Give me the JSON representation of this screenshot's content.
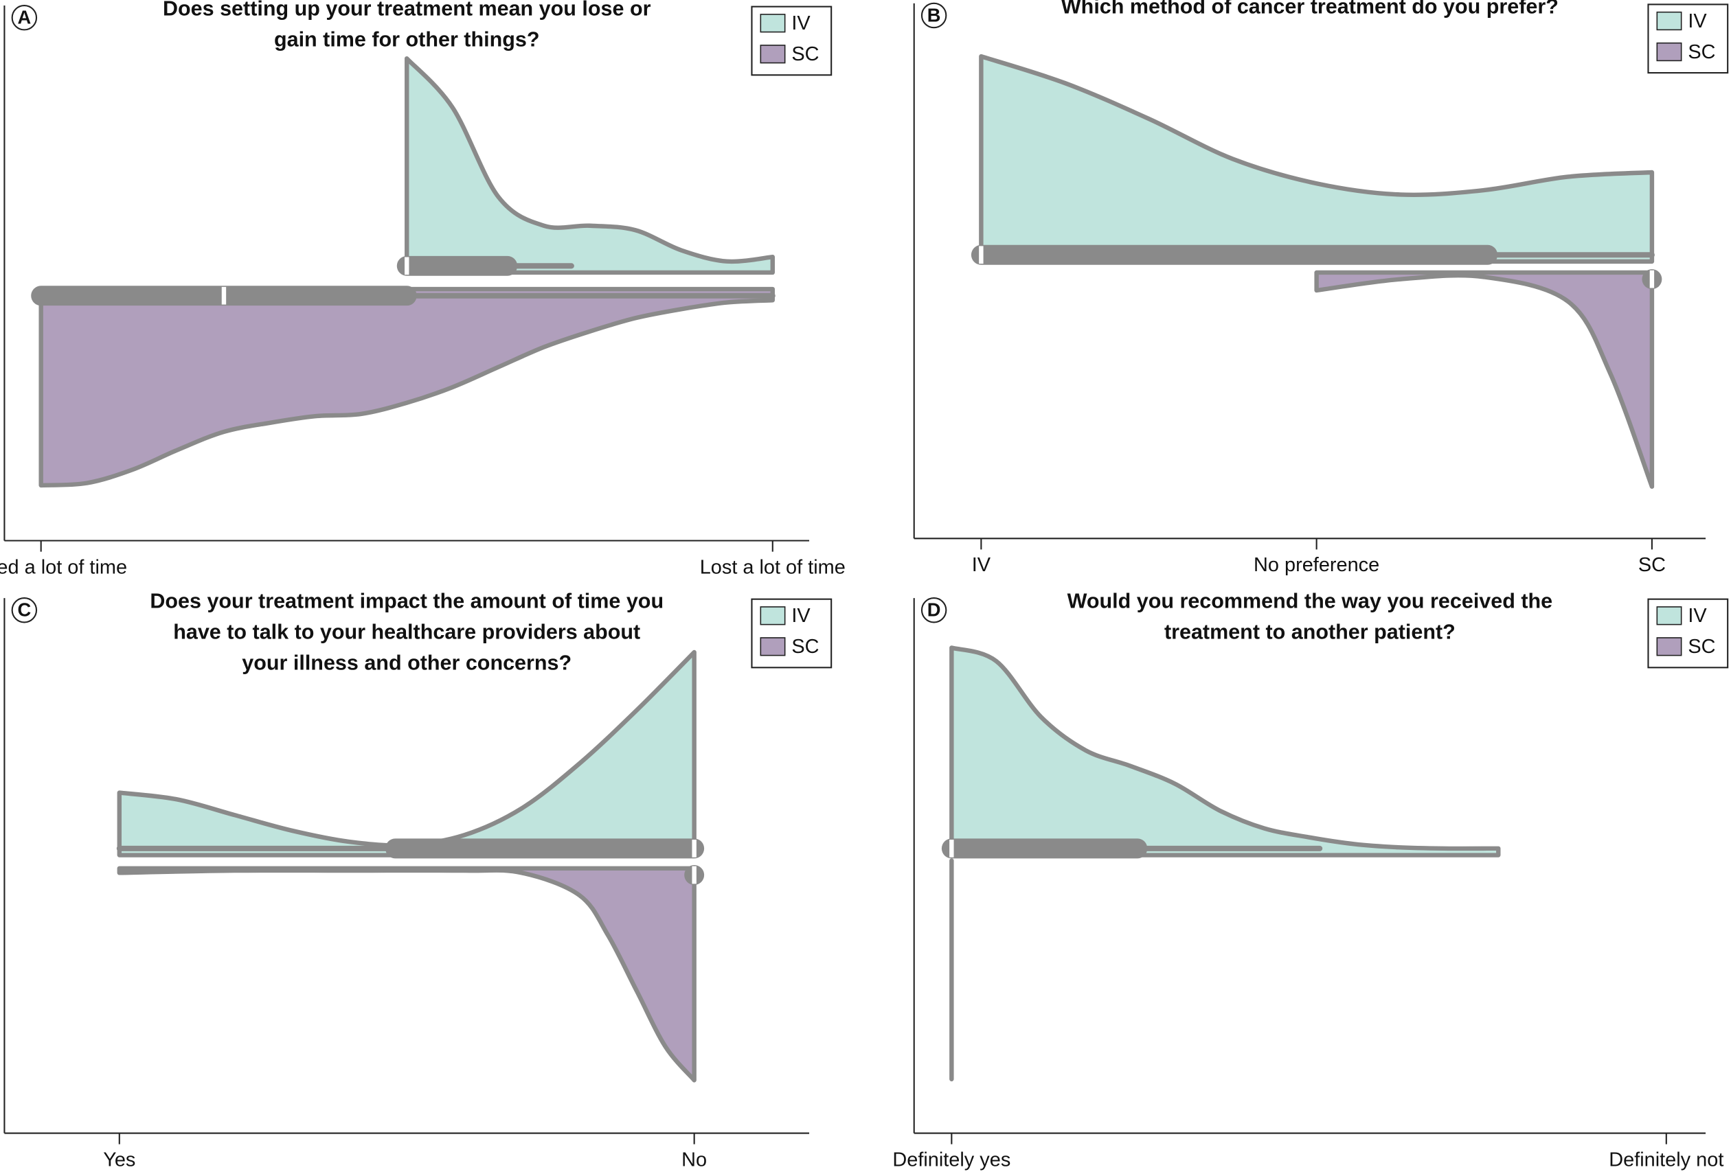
{
  "chart_data": [
    {
      "type": "violin",
      "panel": "A",
      "title": [
        "Does setting up your treatment mean you lose or",
        "gain time for other things?"
      ],
      "xlim": [
        0.8,
        5.2
      ],
      "xticks": [
        {
          "value": 1,
          "label": "Gained a lot of time"
        },
        {
          "value": 5,
          "label": "Lost a lot of time"
        }
      ],
      "ylim": [
        -1.2,
        1.2
      ],
      "legend": "upper right",
      "series": [
        {
          "name": "IV",
          "color": "#c0e4dd",
          "x": [
            3.0,
            3.25,
            3.5,
            3.75,
            4.0,
            4.25,
            4.5,
            4.75,
            5.0
          ],
          "values": [
            0.96,
            0.74,
            0.34,
            0.21,
            0.21,
            0.19,
            0.1,
            0.05,
            0.07
          ],
          "box": {
            "whisker_low": 3.0,
            "q1": 3.0,
            "median": 3.0,
            "q3": 3.55,
            "whisker_high": 3.9
          }
        },
        {
          "name": "SC",
          "color": "#b09fbc",
          "x": [
            1.0,
            1.25,
            1.5,
            1.75,
            2.0,
            2.25,
            2.5,
            2.75,
            3.0,
            3.25,
            3.5,
            3.75,
            4.0,
            4.25,
            4.5,
            4.75,
            5.0
          ],
          "values": [
            0.88,
            0.87,
            0.81,
            0.72,
            0.64,
            0.6,
            0.57,
            0.56,
            0.51,
            0.44,
            0.35,
            0.26,
            0.19,
            0.13,
            0.09,
            0.06,
            0.05
          ],
          "box": {
            "whisker_low": 1.0,
            "q1": 1.0,
            "median": 2.0,
            "q3": 3.0,
            "whisker_high": 5.0
          }
        }
      ]
    },
    {
      "type": "violin",
      "panel": "B",
      "title": [
        "Which method of cancer treatment do you prefer?"
      ],
      "xlim": [
        0.8,
        3.16
      ],
      "xticks": [
        {
          "value": 1,
          "label": "IV"
        },
        {
          "value": 2,
          "label": "No preference"
        },
        {
          "value": 3,
          "label": "SC"
        }
      ],
      "ylim": [
        -1.2,
        1.2
      ],
      "legend": "upper right",
      "series": [
        {
          "name": "IV",
          "color": "#c0e4dd",
          "x": [
            1.0,
            1.25,
            1.5,
            1.75,
            2.0,
            2.25,
            2.5,
            2.75,
            3.0
          ],
          "values": [
            0.92,
            0.8,
            0.64,
            0.46,
            0.35,
            0.3,
            0.32,
            0.38,
            0.4
          ],
          "box": {
            "whisker_low": 1.0,
            "q1": 1.0,
            "median": 1.0,
            "q3": 2.51,
            "whisker_high": 3.0
          }
        },
        {
          "name": "SC",
          "color": "#b09fbc",
          "x": [
            2.0,
            2.25,
            2.5,
            2.75,
            2.875,
            3.0
          ],
          "values": [
            0.08,
            0.03,
            0.02,
            0.13,
            0.45,
            0.96
          ],
          "box": {
            "whisker_low": 3.0,
            "q1": 3.0,
            "median": 3.0,
            "q3": 3.0,
            "whisker_high": 3.0
          }
        }
      ]
    },
    {
      "type": "violin",
      "panel": "C",
      "title": [
        "Does your treatment impact the amount of time you",
        "have to talk to your healthcare providers about",
        "your illness and other concerns?"
      ],
      "xlim": [
        0.8,
        2.2
      ],
      "xticks": [
        {
          "value": 1,
          "label": "Yes"
        },
        {
          "value": 2,
          "label": "No"
        }
      ],
      "ylim": [
        -1.2,
        1.2
      ],
      "legend": "upper right",
      "series": [
        {
          "name": "IV",
          "color": "#c0e4dd",
          "x": [
            1.0,
            1.1,
            1.2,
            1.3,
            1.4,
            1.5,
            1.6,
            1.7,
            1.8,
            1.9,
            2.0
          ],
          "values": [
            0.28,
            0.25,
            0.18,
            0.11,
            0.06,
            0.045,
            0.09,
            0.21,
            0.41,
            0.65,
            0.91
          ],
          "box": {
            "whisker_low": 1.0,
            "q1": 1.48,
            "median": 2.0,
            "q3": 2.0,
            "whisker_high": 2.0
          }
        },
        {
          "name": "SC",
          "color": "#b09fbc",
          "x": [
            1.0,
            1.2,
            1.4,
            1.6,
            1.7,
            1.8,
            1.85,
            1.9,
            1.95,
            2.0
          ],
          "values": [
            0.02,
            0.01,
            0.01,
            0.01,
            0.02,
            0.12,
            0.3,
            0.55,
            0.8,
            0.95
          ],
          "box": {
            "whisker_low": 2.0,
            "q1": 2.0,
            "median": 2.0,
            "q3": 2.0,
            "whisker_high": 2.0
          }
        }
      ]
    },
    {
      "type": "violin",
      "panel": "D",
      "title": [
        "Would you recommend the way you received the",
        "treatment to another patient?"
      ],
      "xlim": [
        0.79,
        5.22
      ],
      "xticks": [
        {
          "value": 1,
          "label": "Definitely yes"
        },
        {
          "value": 5,
          "label": "Definitely not"
        }
      ],
      "ylim": [
        -1.2,
        1.2
      ],
      "legend": "upper right",
      "series": [
        {
          "name": "IV",
          "color": "#c0e4dd",
          "x": [
            1.0,
            1.25,
            1.5,
            1.75,
            2.0,
            2.25,
            2.5,
            2.75,
            3.0,
            3.25,
            3.5,
            3.75,
            4.06
          ],
          "values": [
            0.93,
            0.87,
            0.62,
            0.47,
            0.4,
            0.32,
            0.2,
            0.12,
            0.08,
            0.05,
            0.035,
            0.03,
            0.03
          ],
          "box": {
            "whisker_low": 1.0,
            "q1": 1.0,
            "median": 1.0,
            "q3": 2.04,
            "whisker_high": 3.06
          }
        },
        {
          "name": "SC",
          "color": "#b09fbc",
          "x": [
            1.0
          ],
          "values": [
            0.98
          ]
        }
      ]
    }
  ]
}
